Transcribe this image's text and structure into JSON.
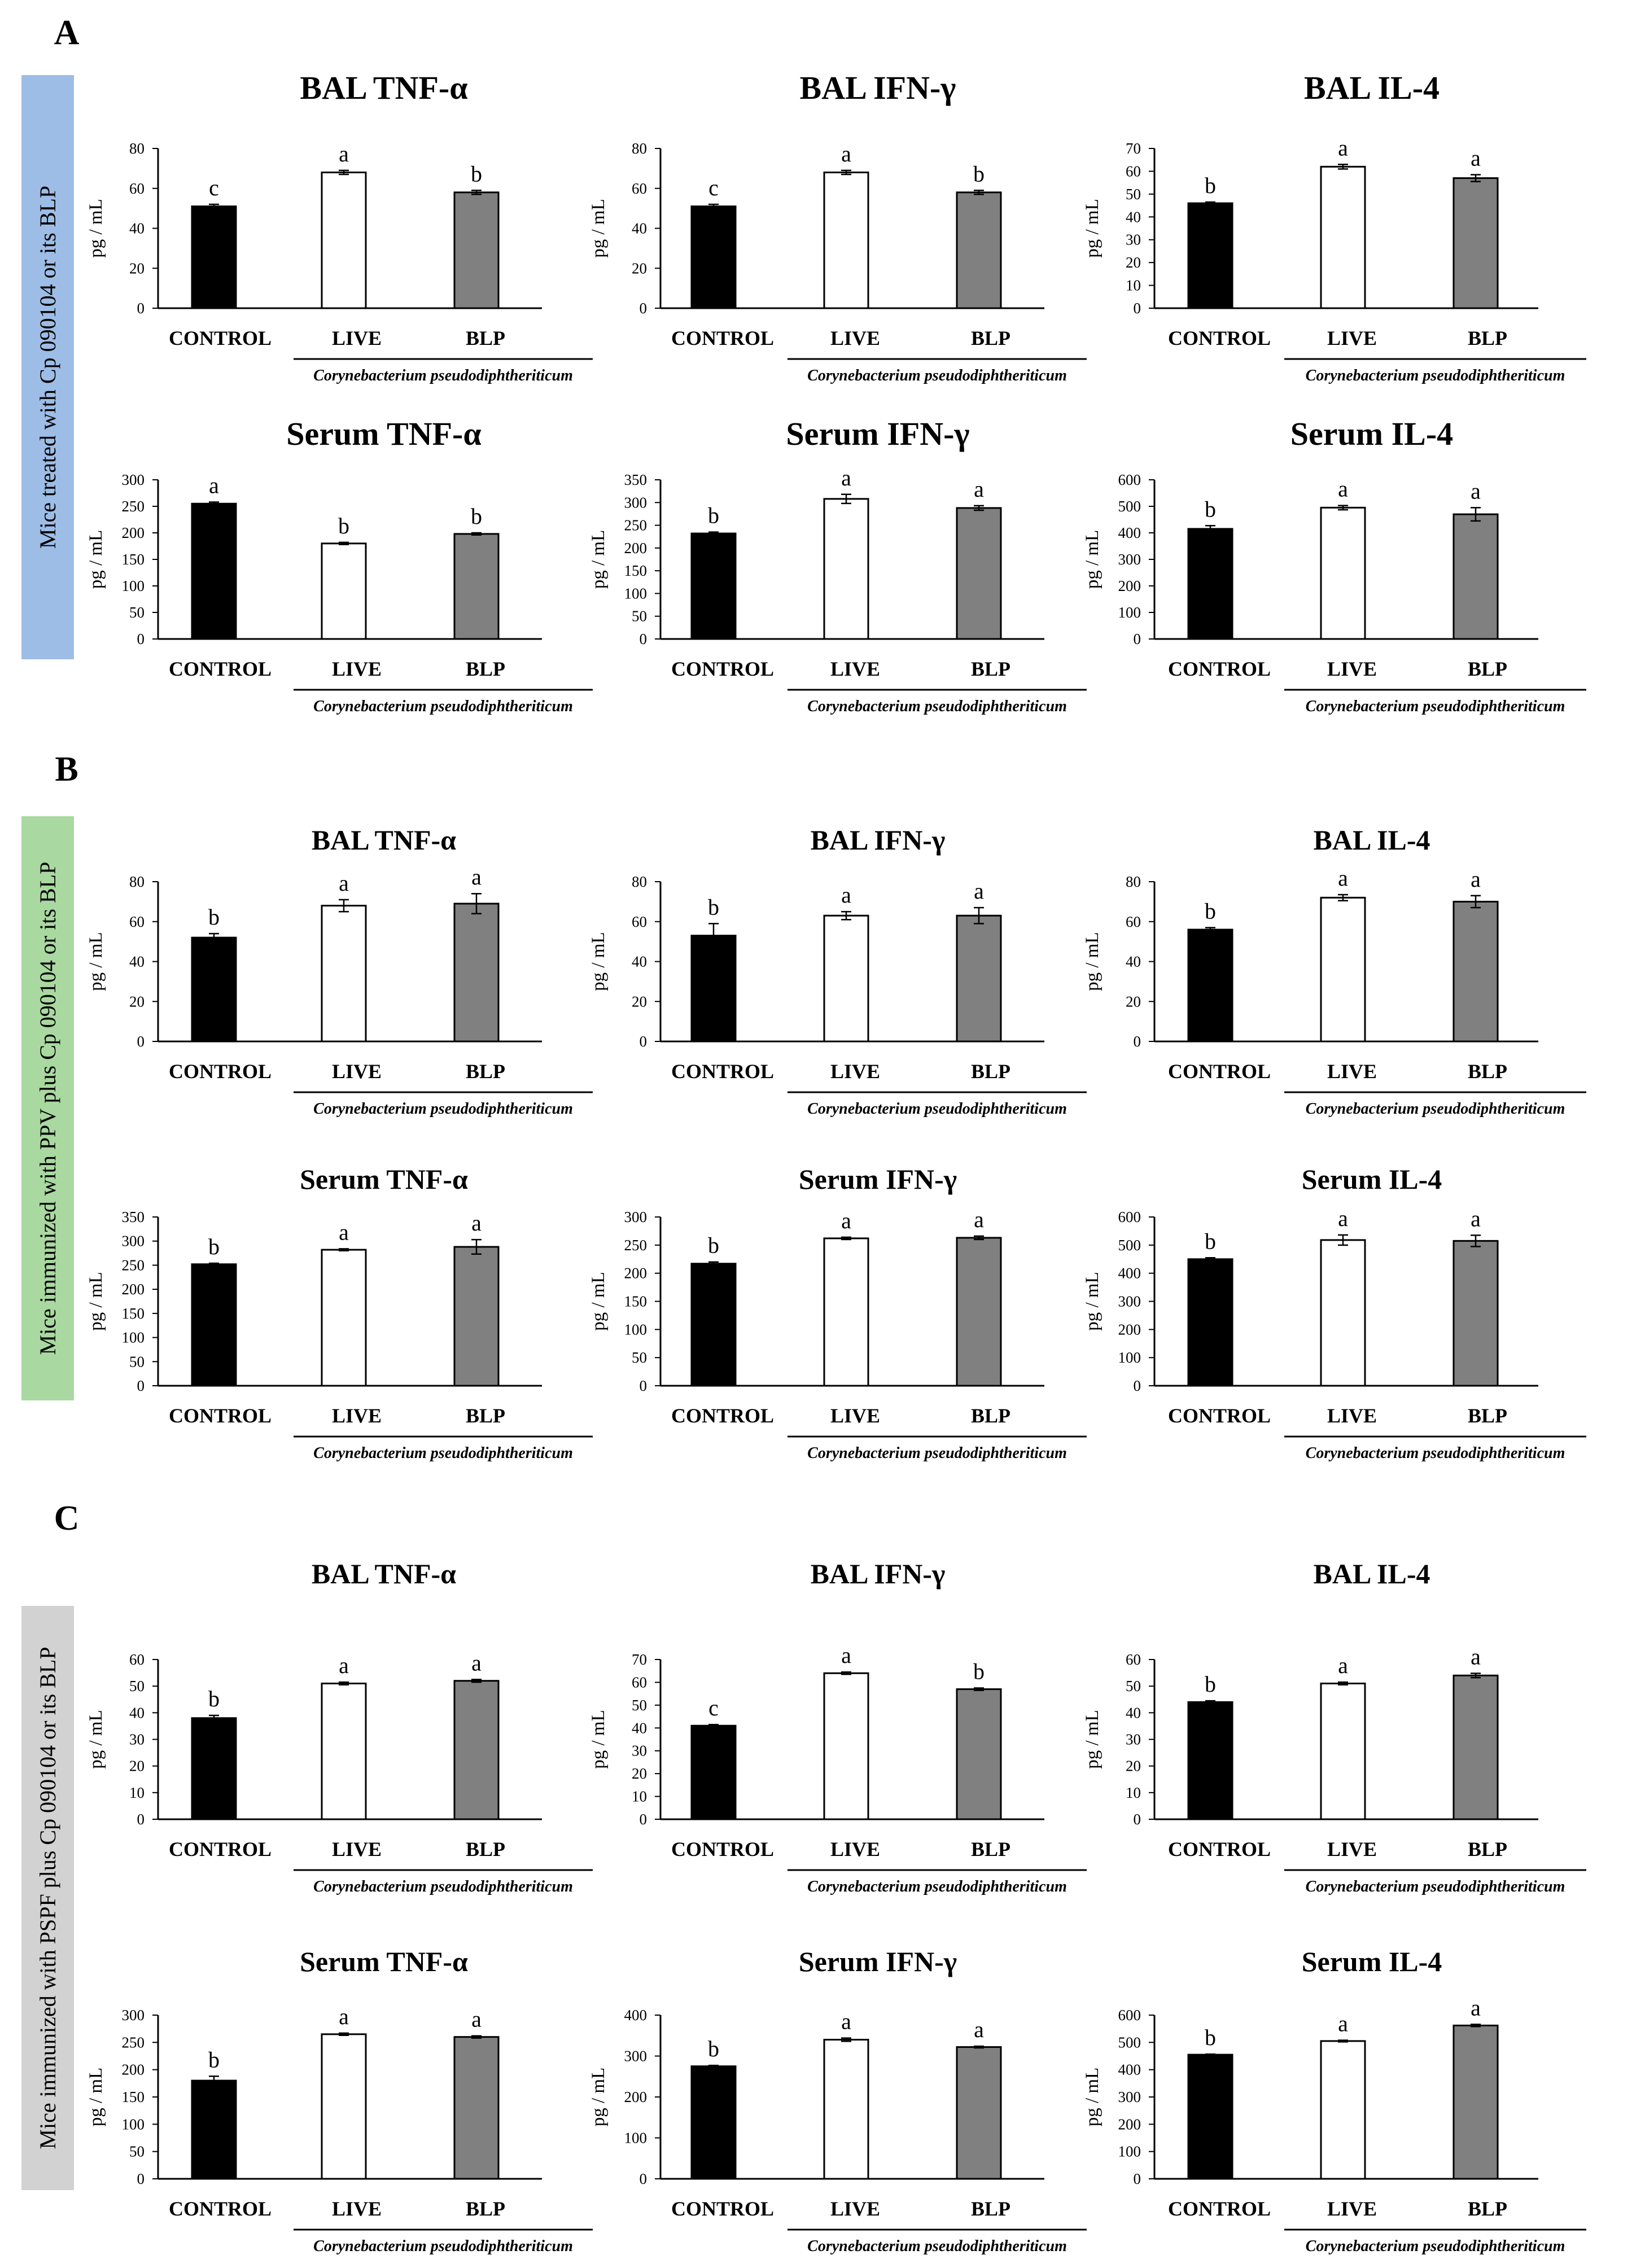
{
  "figure": {
    "sections": [
      {
        "letter": "A",
        "side_label": "Mice treated with Cp 090104 or its BLP",
        "side_color": "#9dbde6"
      },
      {
        "letter": "B",
        "side_label": "Mice immunized with PPV plus Cp 090104 or its BLP",
        "side_color": "#a9d9a0"
      },
      {
        "letter": "C",
        "side_label": "Mice immunized with PSPF plus Cp 090104 or its BLP",
        "side_color": "#d2d2d2"
      }
    ],
    "ylabel": "pg / mL",
    "categories": [
      "CONTROL",
      "LIVE",
      "BLP"
    ],
    "species_label": "Corynebacterium pseudodiphtheriticum",
    "bar_colors": [
      "#000000",
      "#ffffff",
      "#808080"
    ]
  },
  "chart_data": [
    {
      "type": "bar",
      "section": "A",
      "title": "BAL TNF-α",
      "categories": [
        "CONTROL",
        "LIVE",
        "BLP"
      ],
      "values": [
        51,
        68,
        58
      ],
      "errors": [
        1,
        1,
        1
      ],
      "letters": [
        "c",
        "a",
        "b"
      ],
      "ylim": [
        0,
        80
      ],
      "ticks": [
        0,
        20,
        40,
        60,
        80
      ]
    },
    {
      "type": "bar",
      "section": "A",
      "title": "BAL IFN-γ",
      "categories": [
        "CONTROL",
        "LIVE",
        "BLP"
      ],
      "values": [
        51,
        68,
        58
      ],
      "errors": [
        1,
        1,
        1
      ],
      "letters": [
        "c",
        "a",
        "b"
      ],
      "ylim": [
        0,
        80
      ],
      "ticks": [
        0,
        20,
        40,
        60,
        80
      ]
    },
    {
      "type": "bar",
      "section": "A",
      "title": "BAL IL-4",
      "categories": [
        "CONTROL",
        "LIVE",
        "BLP"
      ],
      "values": [
        46,
        62,
        57
      ],
      "errors": [
        0.5,
        1,
        1.5
      ],
      "letters": [
        "b",
        "a",
        "a"
      ],
      "ylim": [
        0,
        70
      ],
      "ticks": [
        0,
        10,
        20,
        30,
        40,
        50,
        60,
        70
      ]
    },
    {
      "type": "bar",
      "section": "A",
      "title": "Serum TNF-α",
      "categories": [
        "CONTROL",
        "LIVE",
        "BLP"
      ],
      "values": [
        255,
        180,
        198
      ],
      "errors": [
        3,
        2,
        2
      ],
      "letters": [
        "a",
        "b",
        "b"
      ],
      "ylim": [
        0,
        300
      ],
      "ticks": [
        0,
        50,
        100,
        150,
        200,
        250,
        300
      ]
    },
    {
      "type": "bar",
      "section": "A",
      "title": "Serum IFN-γ",
      "categories": [
        "CONTROL",
        "LIVE",
        "BLP"
      ],
      "values": [
        232,
        308,
        288
      ],
      "errors": [
        3,
        10,
        5
      ],
      "letters": [
        "b",
        "a",
        "a"
      ],
      "ylim": [
        0,
        350
      ],
      "ticks": [
        0,
        50,
        100,
        150,
        200,
        250,
        300,
        350
      ]
    },
    {
      "type": "bar",
      "section": "A",
      "title": "Serum IL-4",
      "categories": [
        "CONTROL",
        "LIVE",
        "BLP"
      ],
      "values": [
        415,
        495,
        470
      ],
      "errors": [
        12,
        8,
        25
      ],
      "letters": [
        "b",
        "a",
        "a"
      ],
      "ylim": [
        0,
        600
      ],
      "ticks": [
        0,
        100,
        200,
        300,
        400,
        500,
        600
      ]
    },
    {
      "type": "bar",
      "section": "B",
      "title": "BAL TNF-α",
      "categories": [
        "CONTROL",
        "LIVE",
        "BLP"
      ],
      "values": [
        52,
        68,
        69
      ],
      "errors": [
        2,
        3,
        5
      ],
      "letters": [
        "b",
        "a",
        "a"
      ],
      "ylim": [
        0,
        80
      ],
      "ticks": [
        0,
        20,
        40,
        60,
        80
      ]
    },
    {
      "type": "bar",
      "section": "B",
      "title": "BAL IFN-γ",
      "categories": [
        "CONTROL",
        "LIVE",
        "BLP"
      ],
      "values": [
        53,
        63,
        63
      ],
      "errors": [
        6,
        2,
        4
      ],
      "letters": [
        "b",
        "a",
        "a"
      ],
      "ylim": [
        0,
        80
      ],
      "ticks": [
        0,
        20,
        40,
        60,
        80
      ]
    },
    {
      "type": "bar",
      "section": "B",
      "title": "BAL IL-4",
      "categories": [
        "CONTROL",
        "LIVE",
        "BLP"
      ],
      "values": [
        56,
        72,
        70
      ],
      "errors": [
        1,
        1.5,
        3
      ],
      "letters": [
        "b",
        "a",
        "a"
      ],
      "ylim": [
        0,
        80
      ],
      "ticks": [
        0,
        20,
        40,
        60,
        80
      ]
    },
    {
      "type": "bar",
      "section": "B",
      "title": "Serum TNF-α",
      "categories": [
        "CONTROL",
        "LIVE",
        "BLP"
      ],
      "values": [
        252,
        282,
        288
      ],
      "errors": [
        2,
        2,
        15
      ],
      "letters": [
        "b",
        "a",
        "a"
      ],
      "ylim": [
        0,
        350
      ],
      "ticks": [
        0,
        50,
        100,
        150,
        200,
        250,
        300,
        350
      ]
    },
    {
      "type": "bar",
      "section": "B",
      "title": "Serum IFN-γ",
      "categories": [
        "CONTROL",
        "LIVE",
        "BLP"
      ],
      "values": [
        217,
        262,
        263
      ],
      "errors": [
        3,
        2,
        3
      ],
      "letters": [
        "b",
        "a",
        "a"
      ],
      "ylim": [
        0,
        300
      ],
      "ticks": [
        0,
        50,
        100,
        150,
        200,
        250,
        300
      ]
    },
    {
      "type": "bar",
      "section": "B",
      "title": "Serum IL-4",
      "categories": [
        "CONTROL",
        "LIVE",
        "BLP"
      ],
      "values": [
        450,
        518,
        515
      ],
      "errors": [
        5,
        18,
        20
      ],
      "letters": [
        "b",
        "a",
        "a"
      ],
      "ylim": [
        0,
        600
      ],
      "ticks": [
        0,
        100,
        200,
        300,
        400,
        500,
        600
      ]
    },
    {
      "type": "bar",
      "section": "C",
      "title": "BAL TNF-α",
      "categories": [
        "CONTROL",
        "LIVE",
        "BLP"
      ],
      "values": [
        38,
        51,
        52
      ],
      "errors": [
        1,
        0.5,
        0.5
      ],
      "letters": [
        "b",
        "a",
        "a"
      ],
      "ylim": [
        0,
        60
      ],
      "ticks": [
        0,
        10,
        20,
        30,
        40,
        50,
        60
      ]
    },
    {
      "type": "bar",
      "section": "C",
      "title": "BAL IFN-γ",
      "categories": [
        "CONTROL",
        "LIVE",
        "BLP"
      ],
      "values": [
        41,
        64,
        57
      ],
      "errors": [
        0.5,
        0.5,
        0.5
      ],
      "letters": [
        "c",
        "a",
        "b"
      ],
      "ylim": [
        0,
        70
      ],
      "ticks": [
        0,
        10,
        20,
        30,
        40,
        50,
        60,
        70
      ]
    },
    {
      "type": "bar",
      "section": "C",
      "title": "BAL IL-4",
      "categories": [
        "CONTROL",
        "LIVE",
        "BLP"
      ],
      "values": [
        44,
        51,
        54
      ],
      "errors": [
        0.5,
        0.5,
        0.8
      ],
      "letters": [
        "b",
        "a",
        "a"
      ],
      "ylim": [
        0,
        60
      ],
      "ticks": [
        0,
        10,
        20,
        30,
        40,
        50,
        60
      ]
    },
    {
      "type": "bar",
      "section": "C",
      "title": "Serum TNF-α",
      "categories": [
        "CONTROL",
        "LIVE",
        "BLP"
      ],
      "values": [
        180,
        265,
        260
      ],
      "errors": [
        8,
        2,
        2
      ],
      "letters": [
        "b",
        "a",
        "a"
      ],
      "ylim": [
        0,
        300
      ],
      "ticks": [
        0,
        50,
        100,
        150,
        200,
        250,
        300
      ]
    },
    {
      "type": "bar",
      "section": "C",
      "title": "Serum IFN-γ",
      "categories": [
        "CONTROL",
        "LIVE",
        "BLP"
      ],
      "values": [
        275,
        340,
        322
      ],
      "errors": [
        2,
        4,
        2
      ],
      "letters": [
        "b",
        "a",
        "a"
      ],
      "ylim": [
        0,
        400
      ],
      "ticks": [
        0,
        100,
        200,
        300,
        400
      ]
    },
    {
      "type": "bar",
      "section": "C",
      "title": "Serum IL-4",
      "categories": [
        "CONTROL",
        "LIVE",
        "BLP"
      ],
      "values": [
        455,
        505,
        562
      ],
      "errors": [
        2,
        3,
        4
      ],
      "letters": [
        "b",
        "a",
        "a"
      ],
      "ylim": [
        0,
        600
      ],
      "ticks": [
        0,
        100,
        200,
        300,
        400,
        500,
        600
      ]
    }
  ]
}
